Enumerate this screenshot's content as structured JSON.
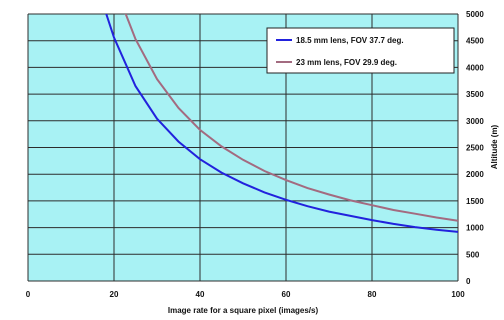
{
  "chart_data": {
    "type": "line",
    "xlabel": "Image rate for a square pixel (images/s)",
    "ylabel": "Altitude (m)",
    "xlim": [
      0,
      100
    ],
    "ylim": [
      0,
      5000
    ],
    "x_ticks": [
      0,
      20,
      40,
      60,
      80,
      100
    ],
    "y_ticks": [
      0,
      500,
      1000,
      1500,
      2000,
      2500,
      3000,
      3500,
      4000,
      4500,
      5000
    ],
    "y_axis_side": "right",
    "grid": true,
    "legend_position": "top-right",
    "plot_background": "#a8f2f4",
    "gridline_color": "#2c2c2c",
    "series": [
      {
        "name": "18.5 mm lens, FOV 37.7 deg.",
        "color": "#2222dd",
        "x": [
          18,
          20,
          25,
          30,
          35,
          40,
          45,
          50,
          55,
          60,
          65,
          70,
          75,
          80,
          85,
          90,
          95,
          100
        ],
        "y": [
          5050,
          4560,
          3650,
          3040,
          2610,
          2280,
          2030,
          1830,
          1660,
          1520,
          1400,
          1300,
          1220,
          1140,
          1070,
          1010,
          960,
          920
        ]
      },
      {
        "name": "23 mm lens, FOV 29.9 deg.",
        "color": "#a36b80",
        "x": [
          22,
          25,
          30,
          35,
          40,
          45,
          50,
          55,
          60,
          65,
          70,
          75,
          80,
          85,
          90,
          95,
          100
        ],
        "y": [
          5150,
          4530,
          3780,
          3240,
          2830,
          2520,
          2270,
          2060,
          1890,
          1740,
          1620,
          1510,
          1420,
          1330,
          1260,
          1190,
          1130
        ]
      }
    ]
  }
}
